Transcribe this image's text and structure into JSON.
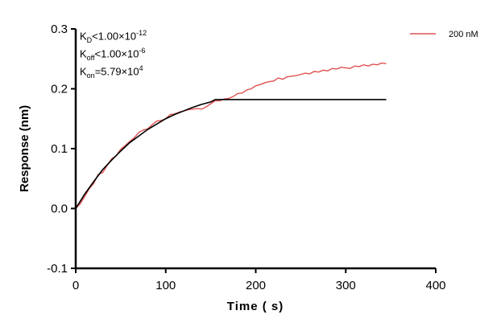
{
  "chart_data": {
    "type": "line",
    "xlabel": "Time ( s)",
    "ylabel": "Response (nm)",
    "xlim": [
      0,
      400
    ],
    "ylim": [
      -0.1,
      0.3
    ],
    "xticks": [
      "0",
      "100",
      "200",
      "300",
      "400"
    ],
    "yticks": [
      "-0.1",
      "0.0",
      "0.1",
      "0.2",
      "0.3"
    ],
    "grid": false,
    "legend_position": "top-right",
    "series": [
      {
        "name": "200 nM",
        "color": "#e05050",
        "x": [
          0,
          5,
          10,
          15,
          20,
          25,
          30,
          35,
          40,
          45,
          50,
          55,
          60,
          65,
          70,
          75,
          80,
          85,
          90,
          95,
          100,
          105,
          110,
          115,
          120,
          125,
          130,
          135,
          140,
          145,
          150,
          155,
          160,
          165,
          170,
          175,
          180,
          185,
          190,
          195,
          200,
          205,
          210,
          215,
          220,
          225,
          230,
          235,
          240,
          245,
          250,
          255,
          260,
          265,
          270,
          275,
          280,
          285,
          290,
          295,
          300,
          305,
          310,
          315,
          320,
          325,
          330,
          335,
          340,
          345
        ],
        "y": [
          0,
          0.008,
          0.02,
          0.033,
          0.042,
          0.057,
          0.06,
          0.072,
          0.083,
          0.088,
          0.099,
          0.105,
          0.112,
          0.118,
          0.127,
          0.131,
          0.133,
          0.14,
          0.146,
          0.147,
          0.15,
          0.157,
          0.158,
          0.161,
          0.163,
          0.165,
          0.166,
          0.167,
          0.166,
          0.17,
          0.175,
          0.18,
          0.18,
          0.183,
          0.184,
          0.187,
          0.192,
          0.193,
          0.198,
          0.2,
          0.205,
          0.207,
          0.21,
          0.212,
          0.213,
          0.218,
          0.216,
          0.22,
          0.221,
          0.222,
          0.224,
          0.226,
          0.225,
          0.229,
          0.228,
          0.231,
          0.23,
          0.234,
          0.233,
          0.236,
          0.235,
          0.234,
          0.238,
          0.237,
          0.24,
          0.238,
          0.241,
          0.24,
          0.243,
          0.242
        ]
      },
      {
        "color": "#000000",
        "x": [
          0,
          10,
          20,
          30,
          40,
          50,
          60,
          70,
          80,
          90,
          100,
          110,
          120,
          130,
          140,
          150,
          155,
          345
        ],
        "y": [
          0,
          0.024,
          0.045,
          0.065,
          0.081,
          0.096,
          0.11,
          0.121,
          0.132,
          0.141,
          0.15,
          0.157,
          0.163,
          0.169,
          0.174,
          0.178,
          0.182,
          0.182
        ]
      }
    ],
    "annotations": {
      "kd": {
        "k": "K",
        "sub": "D",
        "rel": "<1.00×10",
        "exp": "-12"
      },
      "koff": {
        "k": "K",
        "sub": "off",
        "rel": "<1.00×10",
        "exp": "-6"
      },
      "kon": {
        "k": "K",
        "sub": "on",
        "rel": "=5.79×10",
        "exp": "4"
      }
    }
  }
}
